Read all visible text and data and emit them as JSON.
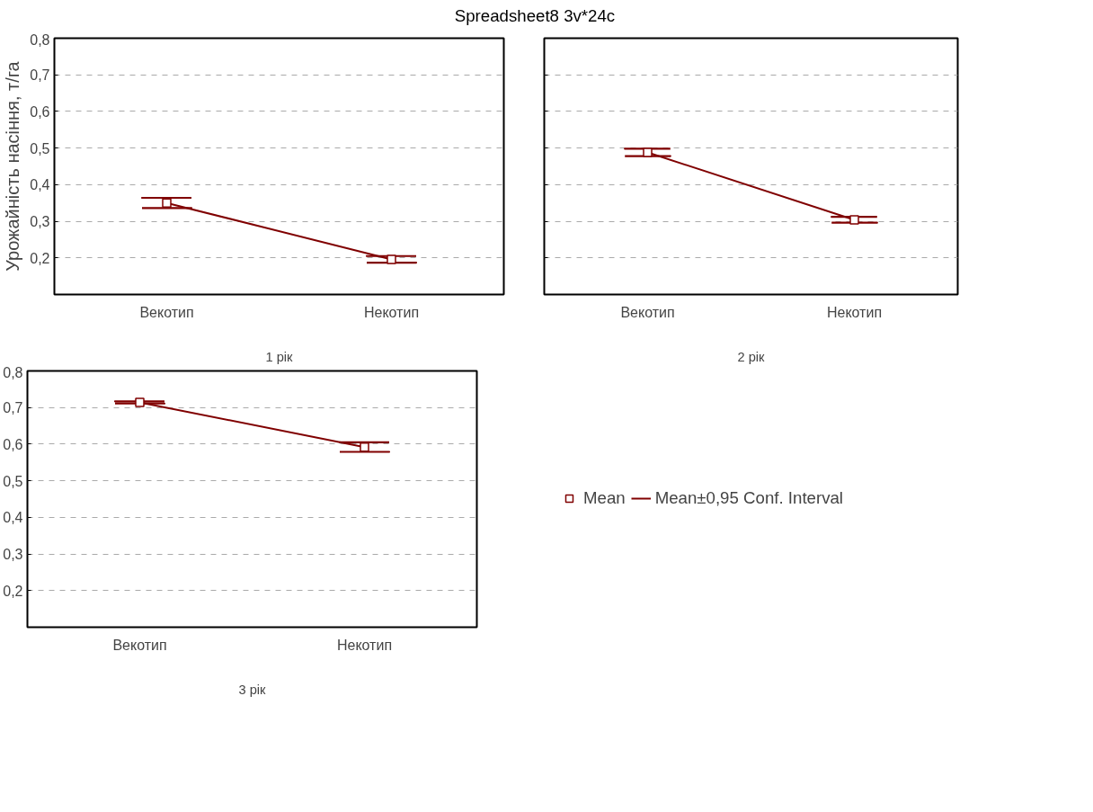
{
  "chart_data": [
    {
      "type": "line",
      "title": "Spreadsheet8 3v*24c",
      "ylabel": "Урожайність насіння, т/га",
      "xlabel": "1 рік",
      "categories": [
        "Векотип",
        "Некотип"
      ],
      "series": [
        {
          "color": "#800000",
          "values": [
            0.35,
            0.196
          ],
          "errors": [
            0.014,
            0.009
          ]
        }
      ],
      "ylim": [
        0.1,
        0.8
      ],
      "yticks": [
        {
          "value": 0.2,
          "label": "0,2"
        },
        {
          "value": 0.3,
          "label": "0,3"
        },
        {
          "value": 0.4,
          "label": "0,4"
        },
        {
          "value": 0.5,
          "label": "0,5"
        },
        {
          "value": 0.6,
          "label": "0,6"
        },
        {
          "value": 0.7,
          "label": "0,7"
        },
        {
          "value": 0.8,
          "label": "0,8"
        }
      ],
      "grid": "y",
      "marker": "square",
      "line_style": "solid"
    },
    {
      "type": "line",
      "xlabel": "2 рік",
      "categories": [
        "Векотип",
        "Некотип"
      ],
      "series": [
        {
          "color": "#800000",
          "values": [
            0.488,
            0.304
          ],
          "errors": [
            0.01,
            0.008
          ]
        }
      ],
      "ylim": [
        0.1,
        0.8
      ],
      "yticks": [
        0.2,
        0.3,
        0.4,
        0.5,
        0.6,
        0.7,
        0.8
      ],
      "grid": "y",
      "marker": "square",
      "line_style": "solid",
      "tick_labels": "x"
    },
    {
      "type": "line",
      "xlabel": "3 рік",
      "categories": [
        "Векотип",
        "Некотип"
      ],
      "series": [
        {
          "name": "Mean",
          "color": "#800000",
          "values": [
            0.714,
            0.592
          ],
          "errors": [
            0.003,
            0.013
          ]
        }
      ],
      "ylim": [
        0.1,
        0.8
      ],
      "yticks": [
        {
          "value": 0.2,
          "label": "0,2"
        },
        {
          "value": 0.3,
          "label": "0,3"
        },
        {
          "value": 0.4,
          "label": "0,4"
        },
        {
          "value": 0.5,
          "label": "0,5"
        },
        {
          "value": 0.6,
          "label": "0,6"
        },
        {
          "value": 0.7,
          "label": "0,7"
        },
        {
          "value": 0.8,
          "label": "0,8"
        }
      ],
      "grid": "y",
      "marker": "square",
      "line_style": "solid",
      "legend": "right",
      "annotations": [
        "Mean±0,95 Conf. Interval"
      ]
    }
  ]
}
